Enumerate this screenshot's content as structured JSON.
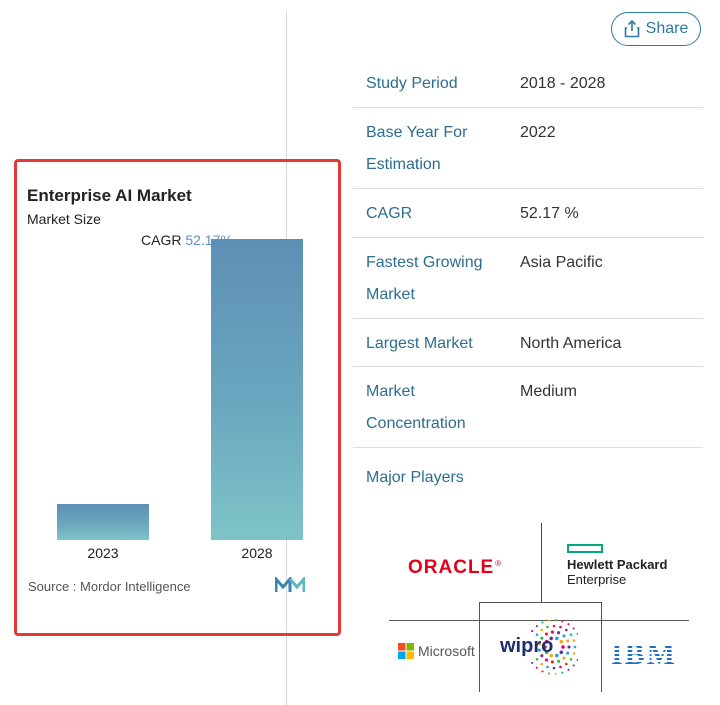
{
  "share": {
    "label": "Share"
  },
  "chart": {
    "title": "Enterprise AI Market",
    "subtitle": "Market Size",
    "cagr_label": "CAGR",
    "cagr_value": "52.17%",
    "source": "Source : Mordor Intelligence"
  },
  "chart_data": {
    "type": "bar",
    "title": "Enterprise AI Market",
    "subtitle": "Market Size",
    "categories": [
      "2023",
      "2028"
    ],
    "values": [
      0.12,
      1.0
    ],
    "annotation": "CAGR 52.17%",
    "grid": false,
    "colors": {
      "bar_top": "#5d8fb5",
      "bar_bottom": "#7ec4c7"
    }
  },
  "table": {
    "rows": [
      {
        "key_lines": [
          "Study Period"
        ],
        "value": "2018 - 2028"
      },
      {
        "key_lines": [
          "Base Year For",
          "Estimation"
        ],
        "value": "2022"
      },
      {
        "key_lines": [
          "CAGR"
        ],
        "value": "52.17 %"
      },
      {
        "key_lines": [
          "Fastest Growing",
          "Market"
        ],
        "value": "Asia Pacific"
      },
      {
        "key_lines": [
          "Largest Market"
        ],
        "value": "North America"
      },
      {
        "key_lines": [
          "Market",
          "Concentration"
        ],
        "value": "Medium"
      }
    ],
    "major_players_label": "Major Players"
  },
  "players": {
    "oracle": "ORACLE",
    "hpe_line1": "Hewlett Packard",
    "hpe_line2": "Enterprise",
    "microsoft": "Microsoft",
    "wipro": "wipro",
    "ibm": "IBM"
  },
  "colors": {
    "accent": "#2c7a9e",
    "label_blue": "#2c6e8f",
    "highlight_border": "#e53935",
    "oracle_red": "#e3001b",
    "hpe_green": "#01a982",
    "ibm_blue": "#1f70c1"
  }
}
